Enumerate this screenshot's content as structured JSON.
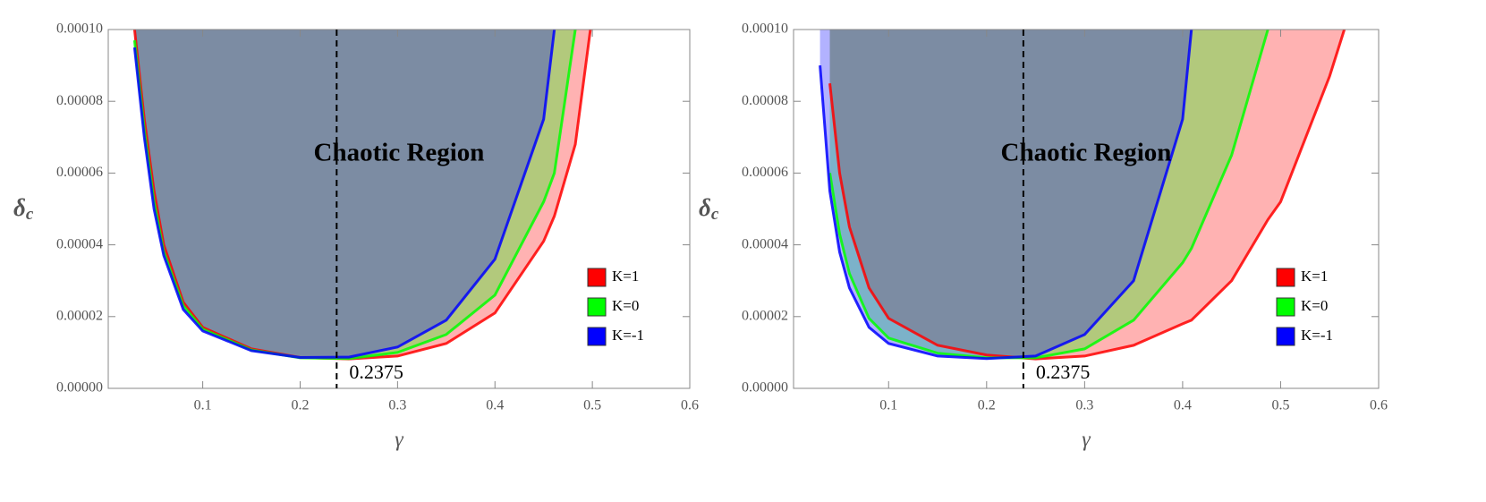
{
  "charts": [
    {
      "type": "area",
      "xlabel": "γ",
      "ylabel": "δ",
      "ylabel_subscript": "c",
      "annotation": "Chaotic Region",
      "vline": 0.2375,
      "legend": "lower right",
      "xlim": [
        0.003,
        0.6
      ],
      "ylim": [
        0,
        0.0001
      ],
      "xticks": [
        0.1,
        0.2,
        0.3,
        0.4,
        0.5,
        0.6
      ],
      "yticks": [
        {
          "value": 0,
          "label": "0.00000"
        },
        {
          "value": 2e-05,
          "label": "0.00002"
        },
        {
          "value": 4e-05,
          "label": "0.00004"
        },
        {
          "value": 6e-05,
          "label": "0.00006"
        },
        {
          "value": 8e-05,
          "label": "0.00008"
        },
        {
          "value": 0.0001,
          "label": "0.00010"
        }
      ],
      "x": [
        0.03,
        0.04,
        0.05,
        0.06,
        0.08,
        0.1,
        0.15,
        0.2,
        0.25,
        0.3,
        0.35,
        0.4,
        0.45,
        0.461,
        0.4825,
        0.498
      ],
      "series": [
        {
          "name": "K=1",
          "color": "#ff0000",
          "values": [
            0.0001,
            7.5e-05,
            5.5e-05,
            4e-05,
            2.4e-05,
            1.7e-05,
            1.1e-05,
            8.6e-06,
            8.2e-06,
            9e-06,
            1.25e-05,
            2.1e-05,
            4.1e-05,
            4.8e-05,
            6.8e-05,
            0.0001
          ]
        },
        {
          "name": "K=0",
          "color": "#00ff00",
          "values": [
            9.7e-05,
            7.2e-05,
            5.2e-05,
            3.8e-05,
            2.3e-05,
            1.65e-05,
            1.07e-05,
            8.5e-06,
            8.3e-06,
            1e-05,
            1.5e-05,
            2.6e-05,
            5.2e-05,
            6e-05,
            0.0001,
            null
          ]
        },
        {
          "name": "K=-1",
          "color": "#0000ff",
          "values": [
            9.5e-05,
            7e-05,
            5e-05,
            3.7e-05,
            2.2e-05,
            1.6e-05,
            1.05e-05,
            8.6e-06,
            8.7e-06,
            1.15e-05,
            1.9e-05,
            3.6e-05,
            7.5e-05,
            0.0001,
            null,
            null
          ]
        }
      ]
    },
    {
      "type": "area",
      "xlabel": "γ",
      "ylabel": "δ",
      "ylabel_subscript": "c",
      "annotation": "Chaotic Region",
      "vline": 0.2375,
      "legend": "lower right",
      "xlim": [
        0.003,
        0.6
      ],
      "ylim": [
        0,
        0.0001
      ],
      "xticks": [
        0.1,
        0.2,
        0.3,
        0.4,
        0.5,
        0.6
      ],
      "yticks": [
        {
          "value": 0,
          "label": "0.00000"
        },
        {
          "value": 2e-05,
          "label": "0.00002"
        },
        {
          "value": 4e-05,
          "label": "0.00004"
        },
        {
          "value": 6e-05,
          "label": "0.00006"
        },
        {
          "value": 8e-05,
          "label": "0.00008"
        },
        {
          "value": 0.0001,
          "label": "0.00010"
        }
      ],
      "x": [
        0.03,
        0.04,
        0.05,
        0.06,
        0.08,
        0.1,
        0.15,
        0.2,
        0.25,
        0.3,
        0.35,
        0.4,
        0.409,
        0.45,
        0.487,
        0.5,
        0.55,
        0.565
      ],
      "series": [
        {
          "name": "K=1",
          "color": "#ff0000",
          "values": [
            null,
            8.5e-05,
            6e-05,
            4.5e-05,
            2.8e-05,
            1.95e-05,
            1.2e-05,
            9.3e-06,
            8.2e-06,
            9e-06,
            1.2e-05,
            1.8e-05,
            1.9e-05,
            3e-05,
            4.7e-05,
            5.2e-05,
            8.7e-05,
            0.0001
          ]
        },
        {
          "name": "K=0",
          "color": "#00ff00",
          "values": [
            null,
            6e-05,
            4.3e-05,
            3.2e-05,
            1.95e-05,
            1.4e-05,
            9.8e-06,
            8.5e-06,
            8.5e-06,
            1.1e-05,
            1.9e-05,
            3.5e-05,
            3.9e-05,
            6.5e-05,
            0.0001,
            null,
            null,
            null
          ]
        },
        {
          "name": "K=-1",
          "color": "#0000ff",
          "values": [
            9e-05,
            5.5e-05,
            3.8e-05,
            2.8e-05,
            1.7e-05,
            1.25e-05,
            9e-06,
            8.3e-06,
            9e-06,
            1.5e-05,
            3e-05,
            7.5e-05,
            0.0001,
            null,
            null,
            null,
            null,
            null
          ]
        }
      ]
    }
  ]
}
